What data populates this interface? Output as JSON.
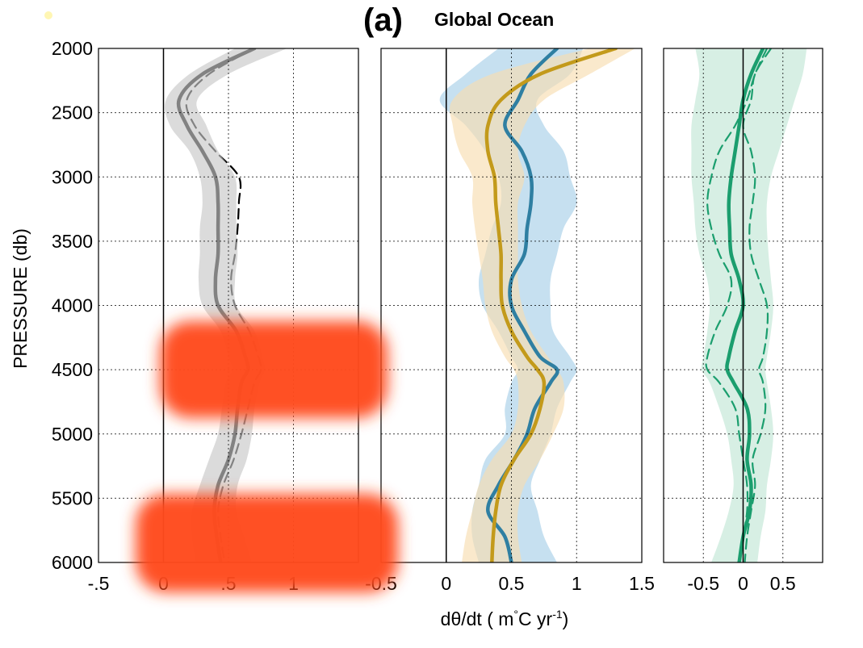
{
  "figure": {
    "panel_tag": "(a)",
    "title": "Global Ocean",
    "ylabel": "PRESSURE (db)",
    "xlabel": "dθ/dt ( m°C yr⁻¹)",
    "xlabel_parts": [
      "dθ/dt ( m",
      "°",
      "C yr",
      "-1",
      ")"
    ]
  },
  "chart_data": [
    {
      "type": "line",
      "panel": "left",
      "y": [
        2000,
        2200,
        2400,
        2600,
        2800,
        3000,
        3200,
        3400,
        3600,
        3800,
        4000,
        4200,
        4400,
        4500,
        4600,
        4800,
        5000,
        5200,
        5400,
        5600,
        5800,
        6000
      ],
      "ylim": [
        2000,
        6000
      ],
      "yticks": [
        2000,
        2500,
        3000,
        3500,
        4000,
        4500,
        5000,
        5500,
        6000
      ],
      "xlim": [
        -0.5,
        1.5
      ],
      "xticks": [
        -0.5,
        0,
        0.5,
        1,
        1.5
      ],
      "xticklabels": [
        "-.5",
        "0",
        ".5",
        "1",
        ""
      ],
      "grid": true,
      "series": [
        {
          "style": "solid",
          "color": "#000000",
          "values": [
            0.7,
            0.3,
            0.12,
            0.18,
            0.3,
            0.4,
            0.42,
            0.42,
            0.42,
            0.4,
            0.42,
            0.56,
            0.63,
            0.65,
            0.6,
            0.57,
            0.55,
            0.5,
            0.42,
            0.39,
            0.41,
            0.44
          ]
        },
        {
          "style": "dashed",
          "color": "#000000",
          "values": [
            0.7,
            0.35,
            0.18,
            0.24,
            0.4,
            0.58,
            0.58,
            0.57,
            0.55,
            0.52,
            0.55,
            0.66,
            0.73,
            0.75,
            0.7,
            0.65,
            0.6,
            0.54,
            0.46,
            0.42,
            0.44,
            0.47
          ]
        },
        {
          "style": "band",
          "color": "#c8c8c8",
          "lower": [
            0.55,
            0.2,
            0.02,
            0.05,
            0.2,
            0.28,
            0.3,
            0.28,
            0.28,
            0.27,
            0.3,
            0.44,
            0.5,
            0.53,
            0.48,
            0.45,
            0.42,
            0.35,
            0.28,
            0.22,
            0.22,
            0.25
          ],
          "upper": [
            0.95,
            0.5,
            0.26,
            0.33,
            0.42,
            0.55,
            0.56,
            0.56,
            0.57,
            0.55,
            0.56,
            0.7,
            0.76,
            0.78,
            0.74,
            0.7,
            0.68,
            0.64,
            0.57,
            0.56,
            0.62,
            0.68
          ]
        }
      ]
    },
    {
      "type": "line",
      "panel": "middle",
      "y": [
        2000,
        2200,
        2400,
        2600,
        2800,
        3000,
        3200,
        3400,
        3600,
        3800,
        4000,
        4200,
        4400,
        4500,
        4600,
        4800,
        5000,
        5200,
        5400,
        5600,
        5800,
        6000
      ],
      "ylim": [
        2000,
        6000
      ],
      "xlim": [
        -0.5,
        1.5
      ],
      "xticks": [
        -0.5,
        0,
        0.5,
        1,
        1.5
      ],
      "xticklabels": [
        "-0.5",
        "0",
        "0.5",
        "1",
        "1.5"
      ],
      "grid": true,
      "series": [
        {
          "style": "band",
          "color": "#a8cfe8",
          "lower": [
            0.4,
            0.15,
            -0.05,
            0.15,
            0.3,
            0.4,
            0.42,
            0.35,
            0.3,
            0.25,
            0.28,
            0.4,
            0.5,
            0.55,
            0.5,
            0.45,
            0.45,
            0.3,
            0.25,
            0.2,
            0.2,
            0.25
          ],
          "upper": [
            1.05,
            0.95,
            0.7,
            0.75,
            0.9,
            0.95,
            1.0,
            0.9,
            0.85,
            0.8,
            0.8,
            0.82,
            0.95,
            1.0,
            0.95,
            0.85,
            0.8,
            0.72,
            0.65,
            0.7,
            0.75,
            0.85
          ]
        },
        {
          "style": "band",
          "color": "#f8ddb0",
          "lower": [
            1.1,
            0.35,
            0.05,
            0.05,
            0.1,
            0.2,
            0.2,
            0.22,
            0.25,
            0.28,
            0.3,
            0.35,
            0.45,
            0.52,
            0.55,
            0.55,
            0.5,
            0.35,
            0.25,
            0.2,
            0.15,
            0.12
          ],
          "upper": [
            1.45,
            1.1,
            0.75,
            0.6,
            0.55,
            0.6,
            0.55,
            0.55,
            0.55,
            0.55,
            0.58,
            0.65,
            0.78,
            0.85,
            0.9,
            0.9,
            0.82,
            0.72,
            0.6,
            0.55,
            0.55,
            0.58
          ]
        },
        {
          "style": "solid",
          "color": "#2f7fa2",
          "values": [
            0.85,
            0.65,
            0.55,
            0.45,
            0.58,
            0.65,
            0.65,
            0.62,
            0.6,
            0.5,
            0.5,
            0.6,
            0.72,
            0.85,
            0.8,
            0.68,
            0.62,
            0.52,
            0.4,
            0.32,
            0.45,
            0.5
          ]
        },
        {
          "style": "solid",
          "color": "#c39a1b",
          "values": [
            1.3,
            0.72,
            0.42,
            0.32,
            0.32,
            0.37,
            0.38,
            0.4,
            0.42,
            0.42,
            0.43,
            0.5,
            0.62,
            0.7,
            0.75,
            0.72,
            0.65,
            0.52,
            0.42,
            0.38,
            0.36,
            0.35
          ]
        }
      ]
    },
    {
      "type": "line",
      "panel": "right",
      "y": [
        2000,
        2200,
        2400,
        2600,
        2800,
        3000,
        3200,
        3400,
        3600,
        3800,
        4000,
        4200,
        4400,
        4500,
        4600,
        4800,
        5000,
        5200,
        5400,
        5600,
        5800,
        6000
      ],
      "ylim": [
        2000,
        6000
      ],
      "xlim": [
        -1.0,
        1.0
      ],
      "xticks": [
        -0.5,
        0,
        0.5
      ],
      "xticklabels": [
        "-0.5",
        "0",
        "0.5"
      ],
      "grid": true,
      "series": [
        {
          "style": "band",
          "color": "#c2e6d6",
          "lower": [
            -0.6,
            -0.55,
            -0.6,
            -0.65,
            -0.65,
            -0.65,
            -0.62,
            -0.6,
            -0.55,
            -0.45,
            -0.42,
            -0.45,
            -0.5,
            -0.52,
            -0.42,
            -0.3,
            -0.2,
            -0.15,
            -0.12,
            -0.18,
            -0.28,
            -0.4
          ],
          "upper": [
            0.8,
            0.75,
            0.65,
            0.55,
            0.45,
            0.35,
            0.3,
            0.3,
            0.32,
            0.35,
            0.38,
            0.35,
            0.3,
            0.28,
            0.3,
            0.35,
            0.38,
            0.35,
            0.3,
            0.28,
            0.22,
            0.18
          ]
        },
        {
          "style": "solid",
          "color": "#1b9e6e",
          "values": [
            0.25,
            0.1,
            0.0,
            -0.05,
            -0.1,
            -0.15,
            -0.18,
            -0.17,
            -0.15,
            -0.05,
            0.0,
            -0.1,
            -0.18,
            -0.2,
            -0.12,
            0.05,
            0.08,
            0.05,
            0.1,
            0.08,
            0.0,
            -0.05
          ]
        },
        {
          "style": "dashed",
          "color": "#1b9e6e",
          "values": [
            0.3,
            0.15,
            0.05,
            -0.1,
            -0.3,
            -0.4,
            -0.45,
            -0.4,
            -0.3,
            -0.15,
            -0.2,
            -0.35,
            -0.45,
            -0.45,
            -0.3,
            -0.1,
            -0.05,
            0.0,
            0.05,
            0.05,
            0.0,
            -0.05
          ]
        },
        {
          "style": "dashed",
          "color": "#1b9e6e",
          "values": [
            0.35,
            0.15,
            0.1,
            0.0,
            0.1,
            0.15,
            0.12,
            0.08,
            0.1,
            0.2,
            0.3,
            0.3,
            0.25,
            0.2,
            0.25,
            0.28,
            0.22,
            0.12,
            0.15,
            0.1,
            0.05,
            0.02
          ]
        }
      ]
    }
  ]
}
